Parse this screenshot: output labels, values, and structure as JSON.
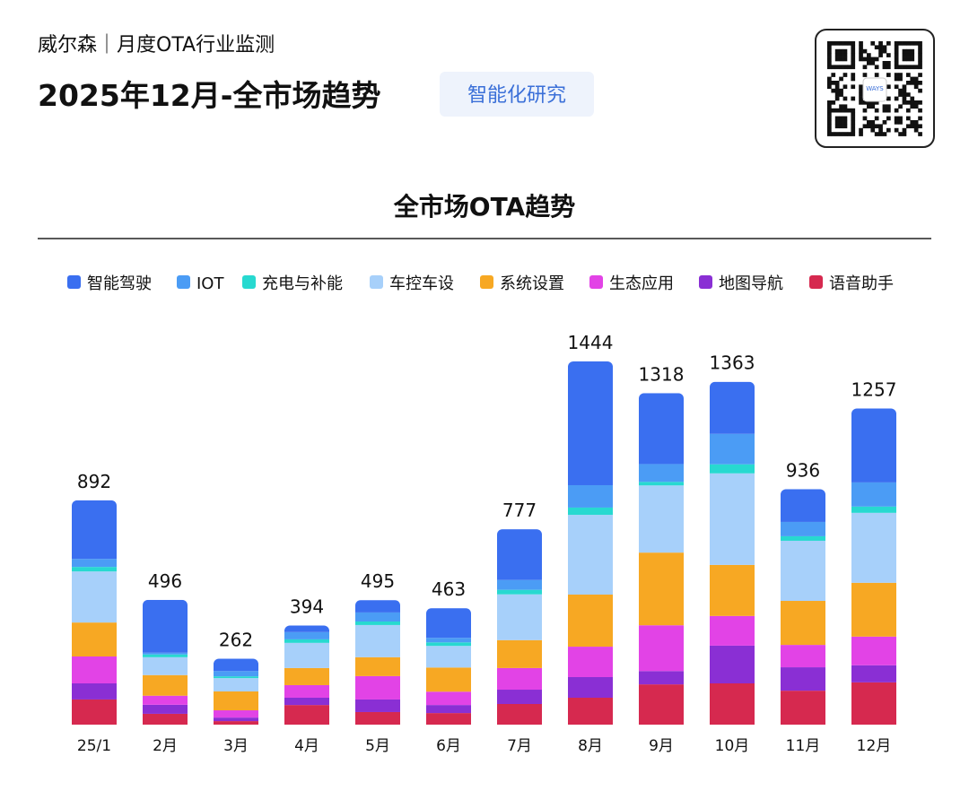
{
  "header": {
    "brand": "威尔森｜月度OTA行业监测",
    "title": "2025年12月-全市场趋势",
    "tag": "智能化研究",
    "qr_text": "WAYS"
  },
  "chart_data": {
    "type": "stacked_bar",
    "title": "全市场OTA趋势",
    "categories": [
      "25/1",
      "2月",
      "3月",
      "4月",
      "5月",
      "6月",
      "7月",
      "8月",
      "9月",
      "10月",
      "11月",
      "12月"
    ],
    "totals": [
      892,
      496,
      262,
      394,
      495,
      463,
      777,
      1444,
      1318,
      1363,
      936,
      1257
    ],
    "series": [
      {
        "name": "智能驾驶",
        "color": "#3a6ff0",
        "values": [
          233,
          210,
          49,
          26,
          49,
          118,
          202,
          492,
          282,
          207,
          130,
          294
        ]
      },
      {
        "name": "IOT",
        "color": "#4b9cf5",
        "values": [
          32,
          7,
          21,
          29,
          36,
          18,
          39,
          89,
          71,
          121,
          57,
          96
        ]
      },
      {
        "name": "充电与补能",
        "color": "#27d9d0",
        "values": [
          18,
          11,
          7,
          14,
          14,
          14,
          18,
          29,
          14,
          36,
          18,
          25
        ]
      },
      {
        "name": "车控车设",
        "color": "#a7d0fa",
        "values": [
          203,
          71,
          53,
          100,
          128,
          86,
          182,
          317,
          267,
          364,
          239,
          278
        ]
      },
      {
        "name": "系统设置",
        "color": "#f7a823",
        "values": [
          135,
          82,
          75,
          68,
          75,
          96,
          111,
          207,
          289,
          203,
          175,
          214
        ]
      },
      {
        "name": "生态应用",
        "color": "#e243e6",
        "values": [
          107,
          36,
          29,
          50,
          93,
          53,
          86,
          121,
          182,
          118,
          89,
          114
        ]
      },
      {
        "name": "地图导航",
        "color": "#8a2fd4",
        "values": [
          64,
          36,
          14,
          29,
          50,
          32,
          57,
          82,
          53,
          150,
          93,
          68
        ]
      },
      {
        "name": "语音助手",
        "color": "#d6294f",
        "values": [
          100,
          43,
          14,
          78,
          50,
          46,
          82,
          107,
          160,
          164,
          135,
          168
        ]
      }
    ]
  }
}
